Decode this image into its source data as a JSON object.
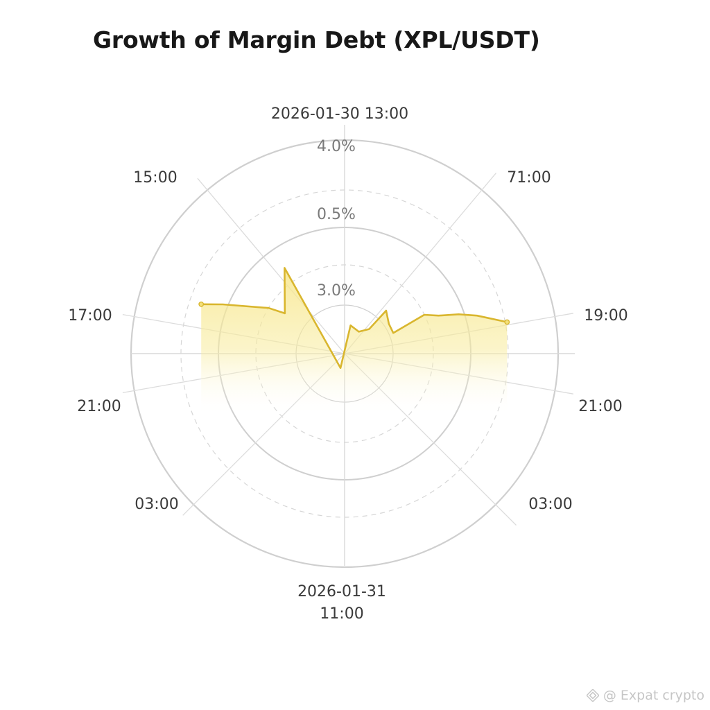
{
  "chart_data": {
    "type": "area",
    "title": "Growth of Margin Debt (XPL/USDT)",
    "polar": true,
    "grid": true,
    "legend": "none",
    "colors": {
      "line": "#d9b62e",
      "fill": "#f7e68a",
      "grid": "#cfcfcf",
      "grid_dashed": "#d6d6d6"
    },
    "angular_labels": [
      {
        "text": "2026-01-30 13:00",
        "angle": 0
      },
      {
        "text": "71:00",
        "angle": 40
      },
      {
        "text": "19:00",
        "angle": 80
      },
      {
        "text": "21:00",
        "angle": 100
      },
      {
        "text": "03:00",
        "angle": 135
      },
      {
        "text": "2026-01-31",
        "text2": "11:00",
        "angle": 180
      },
      {
        "text": "03:00",
        "angle": 225
      },
      {
        "text": "21:00",
        "angle": 260
      },
      {
        "text": "17:00",
        "angle": 280
      },
      {
        "text": "15:00",
        "angle": 320
      }
    ],
    "radial_tick_labels": [
      "3.0%",
      "0.5%",
      "4.0%"
    ],
    "series": [
      {
        "values": [
          {
            "angle": 289,
            "value": 2.84
          },
          {
            "angle": 292,
            "value": 2.46
          },
          {
            "angle": 301,
            "value": 1.66
          },
          {
            "angle": 304,
            "value": 1.35
          },
          {
            "angle": 325,
            "value": 1.96
          },
          {
            "angle": 196,
            "value": 0.28
          },
          {
            "angle": 12,
            "value": 0.54
          },
          {
            "angle": 33,
            "value": 0.49
          },
          {
            "angle": 45,
            "value": 0.65
          },
          {
            "angle": 44,
            "value": 1.12
          },
          {
            "angle": 56,
            "value": 1.0
          },
          {
            "angle": 67,
            "value": 0.99
          },
          {
            "angle": 64,
            "value": 1.66
          },
          {
            "angle": 68,
            "value": 1.9
          },
          {
            "angle": 71,
            "value": 2.26
          },
          {
            "angle": 74,
            "value": 2.58
          },
          {
            "angle": 79,
            "value": 3.1
          }
        ]
      }
    ]
  },
  "watermark": {
    "text": "@ Expat crypto",
    "icon": "binance-diamond-icon"
  }
}
